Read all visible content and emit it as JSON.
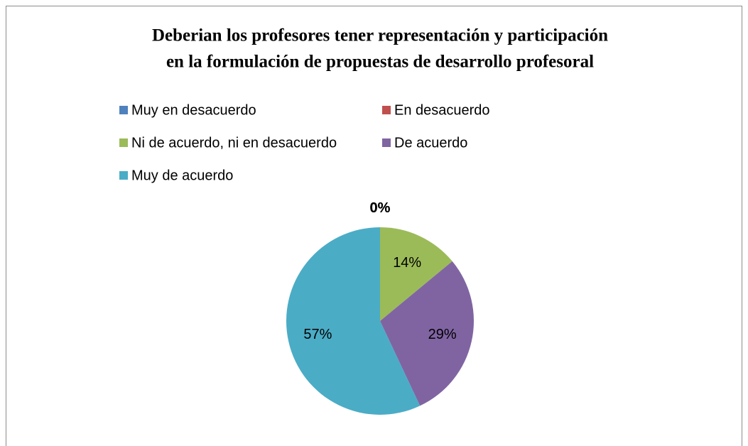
{
  "chart_data": {
    "type": "pie",
    "title": [
      "Deberian los profesores tener representación y participación",
      "en la formulación de propuestas de desarrollo profesoral"
    ],
    "categories": [
      "Muy en desacuerdo",
      "En desacuerdo",
      "Ni de acuerdo, ni en desacuerdo",
      "De acuerdo",
      "Muy de acuerdo"
    ],
    "values": [
      0,
      0,
      14,
      29,
      57
    ],
    "value_labels": [
      "0%",
      "0%",
      "14%",
      "29%",
      "57%"
    ],
    "colors": [
      "#4f81bd",
      "#c0504d",
      "#9bbb59",
      "#8064a2",
      "#4bacc6"
    ],
    "legend": "top"
  }
}
